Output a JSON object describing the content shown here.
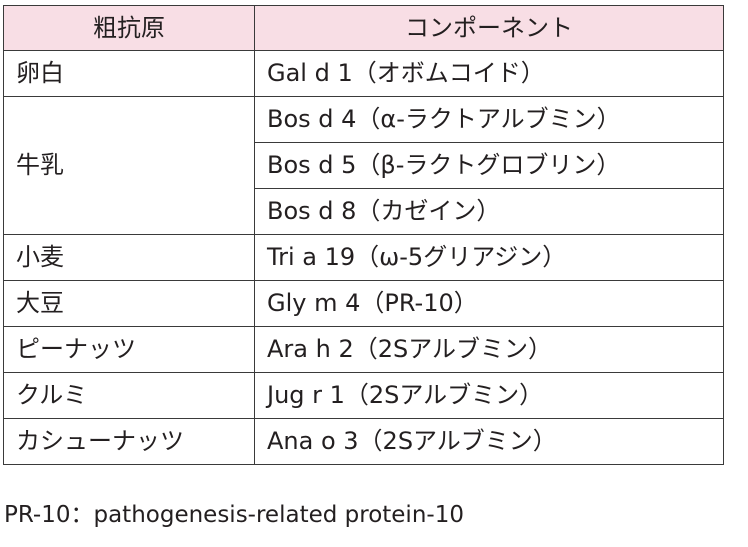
{
  "table": {
    "headers": [
      "粗抗原",
      "コンポーネント"
    ],
    "rows": [
      {
        "source": "卵白",
        "components": [
          "Gal d 1（オボムコイド）"
        ]
      },
      {
        "source": "牛乳",
        "components": [
          "Bos d 4（α-ラクトアルブミン）",
          "Bos d 5（β-ラクトグロブリン）",
          "Bos d 8（カゼイン）"
        ]
      },
      {
        "source": "小麦",
        "components": [
          "Tri a 19（ω-5グリアジン）"
        ]
      },
      {
        "source": "大豆",
        "components": [
          "Gly m 4（PR-10）"
        ]
      },
      {
        "source": "ピーナッツ",
        "components": [
          "Ara h 2（2Sアルブミン）"
        ]
      },
      {
        "source": "クルミ",
        "components": [
          "Jug r 1（2Sアルブミン）"
        ]
      },
      {
        "source": "カシューナッツ",
        "components": [
          "Ana o 3（2Sアルブミン）"
        ]
      }
    ]
  },
  "footnote": "PR-10：pathogenesis-related protein-10",
  "colors": {
    "header_background": "#f8dee5",
    "border": "#3a3a3a",
    "text": "#231f20"
  }
}
